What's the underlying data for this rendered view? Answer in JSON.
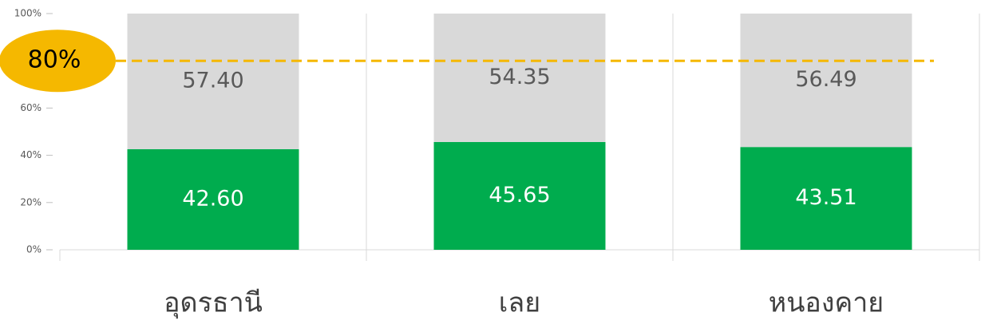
{
  "chart_data": {
    "type": "stacked_bar",
    "categories": [
      "อุดรธานี",
      "เลย",
      "หนองคาย"
    ],
    "series": [
      {
        "color": "#00ac4e",
        "values": [
          42.6,
          45.65,
          43.51
        ],
        "value_labels": [
          "42.60",
          "45.65",
          "43.51"
        ]
      },
      {
        "color": "#d9d9d9",
        "values": [
          57.4,
          54.35,
          56.49
        ],
        "value_labels": [
          "57.40",
          "54.35",
          "56.49"
        ]
      }
    ],
    "ylim": [
      0,
      100
    ],
    "yticks": [
      {
        "value": 0,
        "label": "0%"
      },
      {
        "value": 20,
        "label": "20%"
      },
      {
        "value": 40,
        "label": "40%"
      },
      {
        "value": 60,
        "label": "60%"
      },
      {
        "value": 100,
        "label": "100%"
      }
    ],
    "annotation": {
      "value": 80,
      "label": "80%",
      "color": "#f5b800"
    }
  }
}
